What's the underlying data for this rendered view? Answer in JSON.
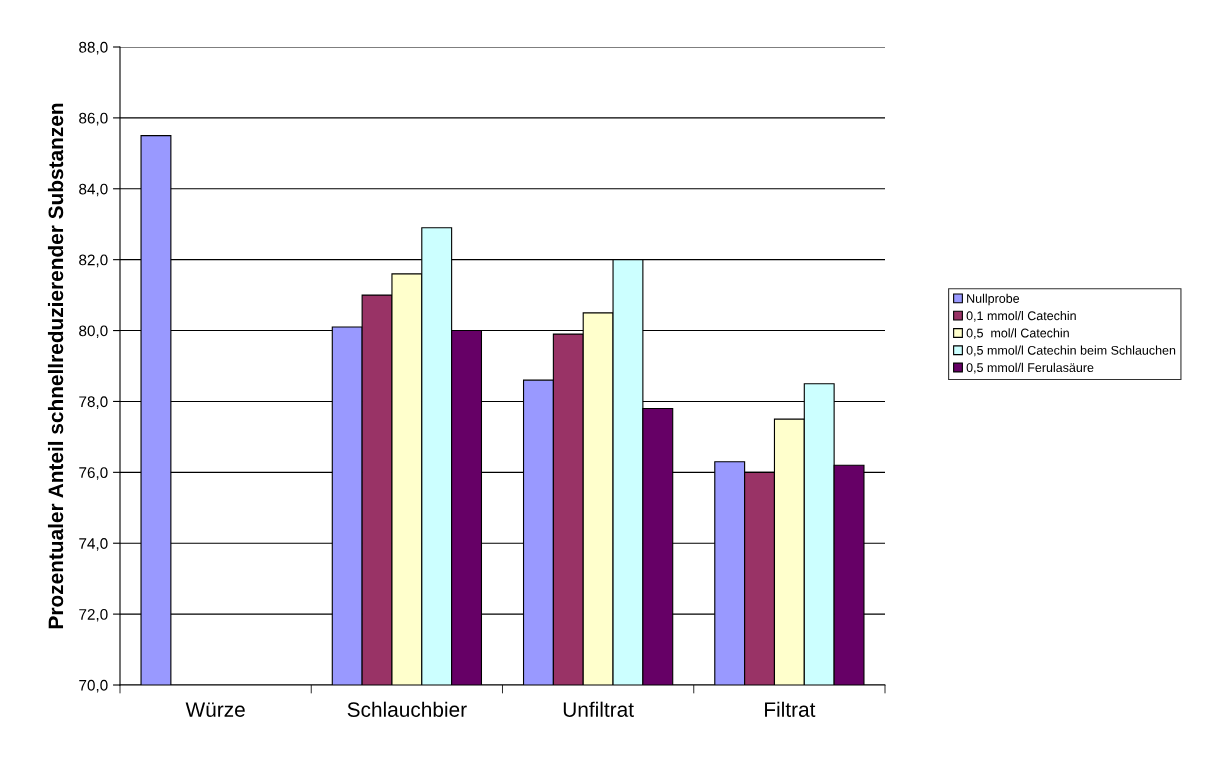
{
  "chart_data": {
    "type": "bar",
    "ylabel": "Prozentualer Anteil schnellreduzierender Substanzen",
    "categories": [
      "Würze",
      "Schlauchbier",
      "Unfiltrat",
      "Filtrat"
    ],
    "series": [
      {
        "name": "Nullprobe",
        "color": "#9999ff",
        "values": [
          85.5,
          80.1,
          78.6,
          76.3
        ]
      },
      {
        "name": "0,1 mmol/l Catechin",
        "color": "#993366",
        "values": [
          null,
          81.0,
          79.9,
          76.0
        ]
      },
      {
        "name": "0,5  mol/l Catechin",
        "color": "#ffffcc",
        "values": [
          null,
          81.6,
          80.5,
          77.5
        ]
      },
      {
        "name": "0,5 mmol/l Catechin beim Schlauchen",
        "color": "#ccffff",
        "values": [
          null,
          82.9,
          82.0,
          78.5
        ]
      },
      {
        "name": "0,5 mmol/l Ferulasäure",
        "color": "#660066",
        "values": [
          null,
          80.0,
          77.8,
          76.2
        ]
      }
    ],
    "ylim": [
      70,
      88
    ],
    "yticks": [
      {
        "value": 70,
        "label": "70,0"
      },
      {
        "value": 72,
        "label": "72,0"
      },
      {
        "value": 74,
        "label": "74,0"
      },
      {
        "value": 76,
        "label": "76,0"
      },
      {
        "value": 78,
        "label": "78,0"
      },
      {
        "value": 80,
        "label": "80,0"
      },
      {
        "value": 82,
        "label": "82,0"
      },
      {
        "value": 84,
        "label": "84,0"
      },
      {
        "value": 86,
        "label": "86,0"
      },
      {
        "value": 88,
        "label": "88,0"
      }
    ],
    "grid": "y",
    "legend": "right"
  }
}
